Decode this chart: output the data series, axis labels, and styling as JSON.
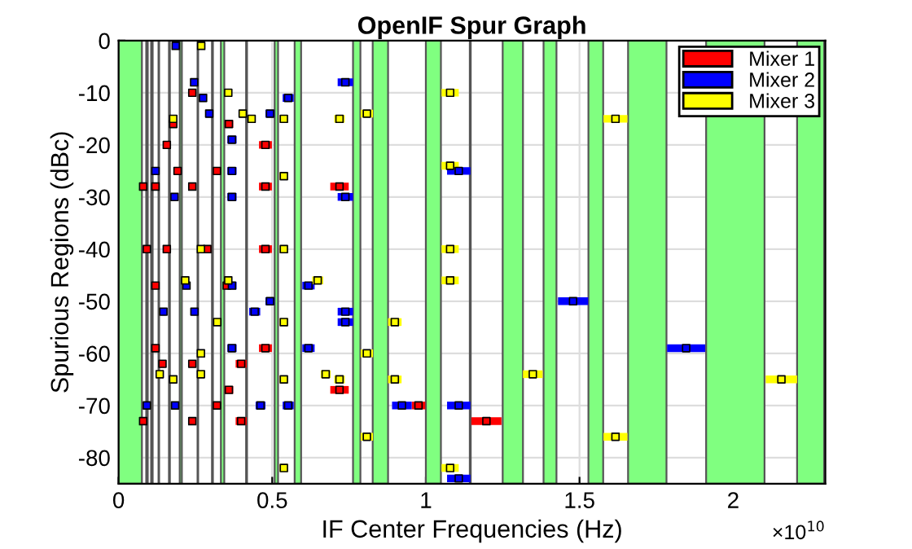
{
  "chart_data": {
    "type": "scatter",
    "title": "OpenIF Spur Graph",
    "xlabel": "IF Center Frequencies (Hz)",
    "ylabel": "Spurious Regions (dBc)",
    "annotations": [
      "×10$^{10}$"
    ],
    "xlim": [
      0,
      2.3
    ],
    "xticks": [
      0,
      0.5,
      1,
      1.5,
      2
    ],
    "ylim": [
      -85,
      0
    ],
    "yticks": [
      -80,
      -70,
      -60,
      -50,
      -40,
      -30,
      -20,
      -10,
      0
    ],
    "grid": true,
    "legend": "top right",
    "marker": "square",
    "bands": [
      {
        "axis": "x",
        "from": 0,
        "to": 0.076,
        "color": "#80ff80"
      },
      {
        "axis": "x",
        "from": 0.09,
        "to": 0.095,
        "color": "#80ff80"
      },
      {
        "axis": "x",
        "from": 0.106,
        "to": 0.111,
        "color": "#80ff80"
      },
      {
        "axis": "x",
        "from": 0.13,
        "to": 0.132,
        "color": "#80ff80"
      },
      {
        "axis": "x",
        "from": 0.164,
        "to": 0.167,
        "color": "#80ff80"
      },
      {
        "axis": "x",
        "from": 0.199,
        "to": 0.206,
        "color": "#80ff80"
      },
      {
        "axis": "x",
        "from": 0.257,
        "to": 0.259,
        "color": "#80ff80"
      },
      {
        "axis": "x",
        "from": 0.304,
        "to": 0.307,
        "color": "#80ff80"
      },
      {
        "axis": "x",
        "from": 0.333,
        "to": 0.344,
        "color": "#80ff80"
      },
      {
        "axis": "x",
        "from": 0.415,
        "to": 0.418,
        "color": "#80ff80"
      },
      {
        "axis": "x",
        "from": 0.508,
        "to": 0.519,
        "color": "#80ff80"
      },
      {
        "axis": "x",
        "from": 0.573,
        "to": 0.594,
        "color": "#80ff80"
      },
      {
        "axis": "x",
        "from": 0.763,
        "to": 0.787,
        "color": "#80ff80"
      },
      {
        "axis": "x",
        "from": 0.827,
        "to": 0.877,
        "color": "#80ff80"
      },
      {
        "axis": "x",
        "from": 1.0,
        "to": 1.049,
        "color": "#80ff80"
      },
      {
        "axis": "x",
        "from": 1.143,
        "to": 1.146,
        "color": "#80ff80"
      },
      {
        "axis": "x",
        "from": 1.25,
        "to": 1.316,
        "color": "#80ff80"
      },
      {
        "axis": "x",
        "from": 1.383,
        "to": 1.425,
        "color": "#80ff80"
      },
      {
        "axis": "x",
        "from": 1.529,
        "to": 1.577,
        "color": "#80ff80"
      },
      {
        "axis": "x",
        "from": 1.658,
        "to": 1.783,
        "color": "#80ff80"
      },
      {
        "axis": "x",
        "from": 1.912,
        "to": 2.102,
        "color": "#80ff80"
      },
      {
        "axis": "x",
        "from": 2.208,
        "to": 2.296,
        "color": "#80ff80"
      }
    ],
    "series": [
      {
        "name": "Mixer 1",
        "color": "#ff0000",
        "x": [
          0.178,
          0.157,
          0.24,
          0.359,
          0.478,
          0.192,
          0.32,
          0.24,
          0.478,
          0.08,
          0.12,
          0.092,
          0.157,
          0.289,
          0.478,
          0.12,
          0.352,
          0.478,
          0.12,
          0.143,
          0.24,
          0.399,
          0.359,
          0.32,
          0.24,
          0.399,
          0.08,
          0.719,
          0.719,
          0.976,
          1.197
        ],
        "values": [
          -16,
          -20,
          -10,
          -16,
          -20,
          -25,
          -25,
          -28,
          -28,
          -28,
          -28,
          -40,
          -40,
          -40,
          -40,
          -47,
          -47,
          -59,
          -59,
          -62,
          -62,
          -62,
          -67,
          -70,
          -73,
          -73,
          -73,
          -28,
          -67,
          -70,
          -73
        ],
        "xerrors": [
          0.009,
          0.007,
          0.012,
          0.014,
          0.021,
          0.008,
          0.013,
          0.012,
          0.021,
          0.004,
          0.005,
          0.006,
          0.007,
          0.014,
          0.021,
          0.005,
          0.007,
          0.021,
          0.005,
          0.007,
          0.012,
          0.018,
          0.014,
          0.013,
          0.012,
          0.018,
          0.004,
          0.03,
          0.03,
          0.022,
          0.049
        ]
      },
      {
        "name": "Mixer 2",
        "color": "#0000ff",
        "x": [
          0.186,
          0.246,
          0.275,
          0.295,
          0.493,
          0.552,
          0.369,
          0.12,
          0.369,
          0.182,
          0.369,
          0.369,
          0.221,
          0.443,
          0.493,
          0.247,
          0.146,
          0.369,
          0.092,
          0.184,
          0.462,
          0.552,
          0.738,
          0.738,
          0.618,
          0.738,
          0.738,
          0.618,
          0.922,
          1.107,
          1.107,
          1.107,
          1.479,
          1.847
        ],
        "values": [
          -1,
          -8,
          -11,
          -14,
          -14,
          -11,
          -19,
          -25,
          -25,
          -30,
          -30,
          -47,
          -47,
          -52,
          -50,
          -52,
          -52,
          -59,
          -70,
          -70,
          -70,
          -70,
          -8,
          -30,
          -47,
          -52,
          -54,
          -59,
          -70,
          -70,
          -25,
          -84,
          -50,
          -59
        ],
        "xerrors": [
          0.011,
          0.009,
          0.012,
          0.011,
          0.015,
          0.018,
          0.015,
          0.005,
          0.015,
          0.007,
          0.015,
          0.015,
          0.008,
          0.018,
          0.015,
          0.007,
          0.007,
          0.015,
          0.006,
          0.009,
          0.016,
          0.018,
          0.025,
          0.025,
          0.02,
          0.025,
          0.025,
          0.02,
          0.032,
          0.038,
          0.038,
          0.038,
          0.049,
          0.062
        ]
      },
      {
        "name": "Mixer 3",
        "color": "#ffff00",
        "x": [
          0.269,
          0.357,
          0.404,
          0.433,
          0.538,
          0.178,
          0.538,
          0.268,
          0.538,
          0.217,
          0.357,
          0.321,
          0.538,
          0.268,
          0.268,
          0.134,
          0.178,
          0.538,
          0.538,
          0.719,
          0.808,
          0.648,
          0.674,
          0.719,
          0.808,
          0.808,
          0.899,
          0.899,
          1.079,
          1.079,
          1.079,
          1.079,
          1.079,
          1.617,
          1.617,
          1.348,
          2.157
        ],
        "values": [
          -1,
          -10,
          -14,
          -15,
          -15,
          -15,
          -26,
          -40,
          -40,
          -46,
          -46,
          -54,
          -54,
          -60,
          -64,
          -64,
          -65,
          -65,
          -82,
          -15,
          -14,
          -46,
          -64,
          -65,
          -60,
          -76,
          -54,
          -65,
          -10,
          -24,
          -40,
          -46,
          -82,
          -15,
          -76,
          -64,
          -65
        ],
        "xerrors": [
          0.008,
          0.012,
          0.011,
          0.011,
          0.014,
          0.009,
          0.014,
          0.007,
          0.014,
          0.007,
          0.012,
          0.009,
          0.014,
          0.007,
          0.007,
          0.005,
          0.009,
          0.014,
          0.014,
          0.017,
          0.02,
          0.018,
          0.016,
          0.017,
          0.02,
          0.02,
          0.022,
          0.022,
          0.028,
          0.028,
          0.028,
          0.028,
          0.028,
          0.039,
          0.039,
          0.032,
          0.051
        ]
      }
    ]
  }
}
